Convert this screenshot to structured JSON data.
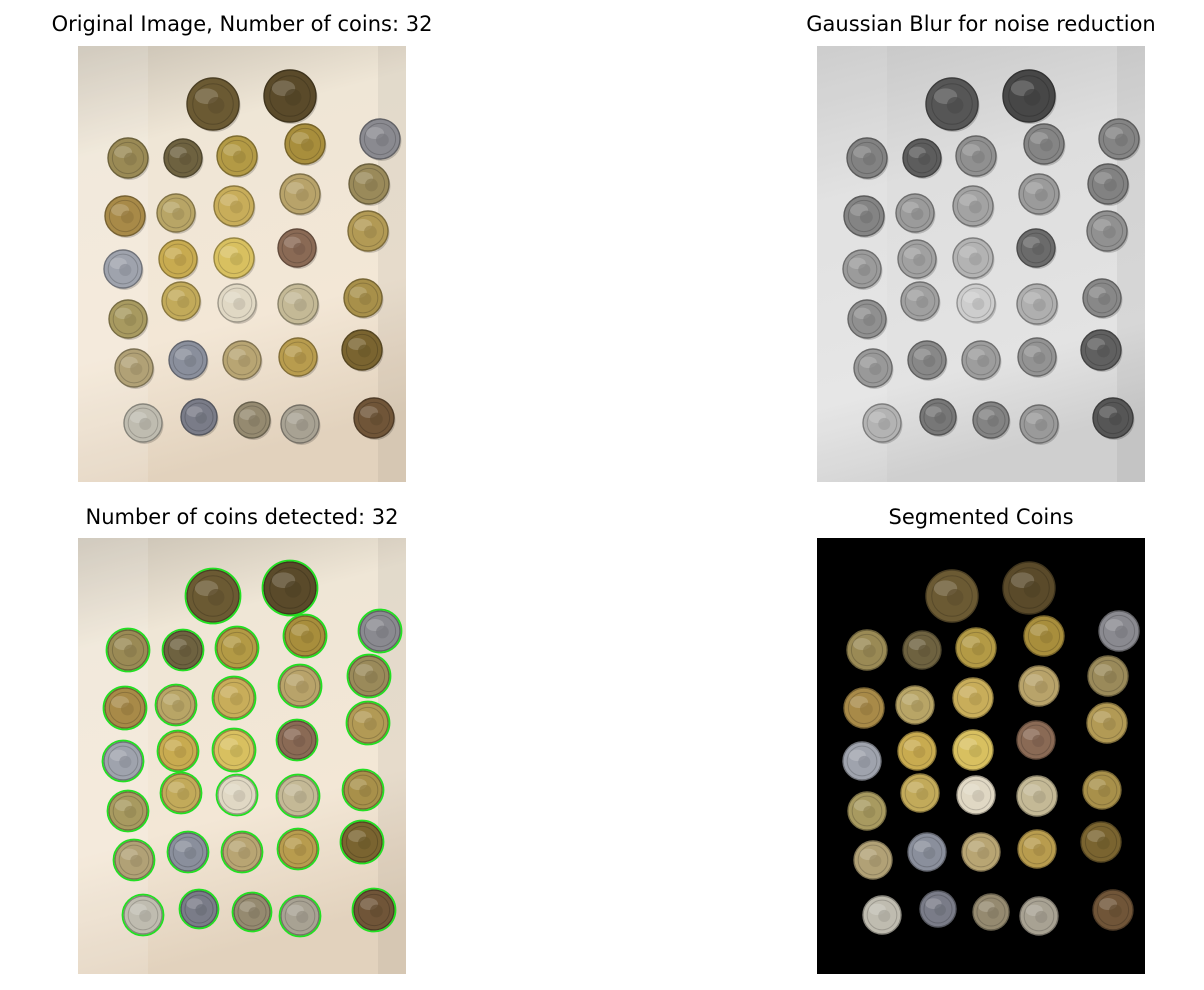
{
  "panels": {
    "original": {
      "title": "Original Image, Number of coins: 32"
    },
    "blur": {
      "title": "Gaussian Blur for noise reduction"
    },
    "detected": {
      "title": "Number of coins detected: 32"
    },
    "segmented": {
      "title": "Segmented Coins"
    }
  },
  "colors": {
    "cloth": "#efe3d3",
    "detect_circle": "#22e022",
    "segment_bg": "#000000"
  }
}
